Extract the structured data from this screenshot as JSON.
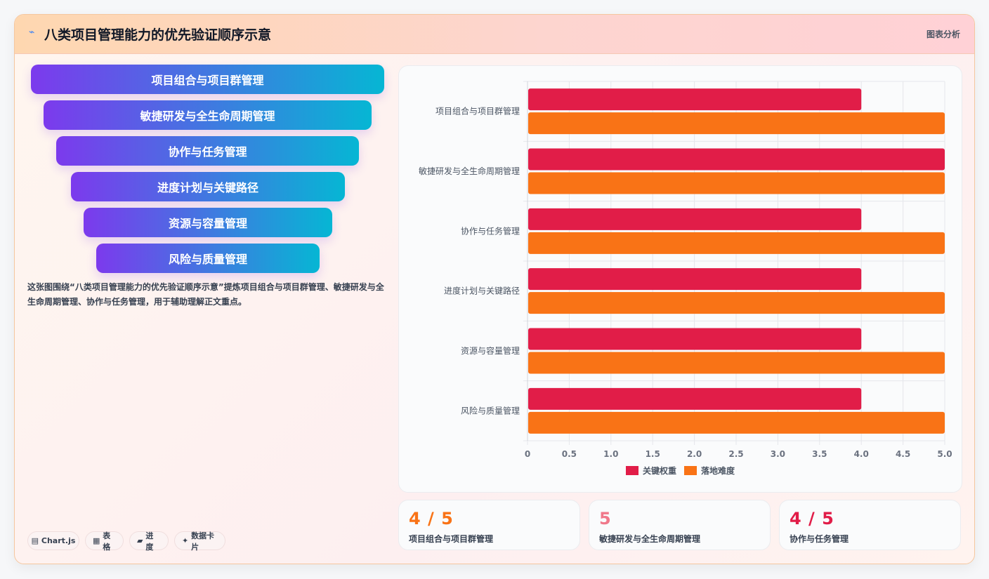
{
  "header": {
    "icon": "chart-line-icon",
    "title": "八类项目管理能力的优先验证顺序示意",
    "tag": "图表分析"
  },
  "funnel": [
    "项目组合与项目群管理",
    "敏捷研发与全生命周期管理",
    "协作与任务管理",
    "进度计划与关键路径",
    "资源与容量管理",
    "风险与质量管理"
  ],
  "description": "这张图围绕“八类项目管理能力的优先验证顺序示意”提炼项目组合与项目群管理、敏捷研发与全生命周期管理、协作与任务管理，用于辅助理解正文重点。",
  "chips": [
    {
      "icon": "database-icon",
      "glyph": "▤",
      "label": "Chart.js"
    },
    {
      "icon": "table-icon",
      "glyph": "▦",
      "label": "表格"
    },
    {
      "icon": "folder-icon",
      "glyph": "▰",
      "label": "进度"
    },
    {
      "icon": "sparkle-icon",
      "glyph": "✦",
      "label": "数据卡片"
    }
  ],
  "stats": [
    {
      "value": "4 / 5",
      "label": "项目组合与项目群管理",
      "color": "#f97316"
    },
    {
      "value": "5",
      "label": "敏捷研发与全生命周期管理",
      "color": "#f0788a"
    },
    {
      "value": "4 / 5",
      "label": "协作与任务管理",
      "color": "#e11d48"
    }
  ],
  "chart_data": {
    "type": "bar",
    "orientation": "horizontal",
    "categories": [
      "项目组合与项目群管理",
      "敏捷研发与全生命周期管理",
      "协作与任务管理",
      "进度计划与关键路径",
      "资源与容量管理",
      "风险与质量管理"
    ],
    "series": [
      {
        "name": "关键权重",
        "values": [
          4,
          5,
          4,
          4,
          4,
          4
        ],
        "color": "#e11d48"
      },
      {
        "name": "落地难度",
        "values": [
          5,
          5,
          5,
          5,
          5,
          5
        ],
        "color": "#f97316"
      }
    ],
    "xlim": [
      0,
      5
    ],
    "xticks": [
      "0",
      "0.5",
      "1.0",
      "1.5",
      "2.0",
      "2.5",
      "3.0",
      "3.5",
      "4.0",
      "4.5",
      "5.0"
    ],
    "grid": true,
    "legend": "bottom"
  }
}
